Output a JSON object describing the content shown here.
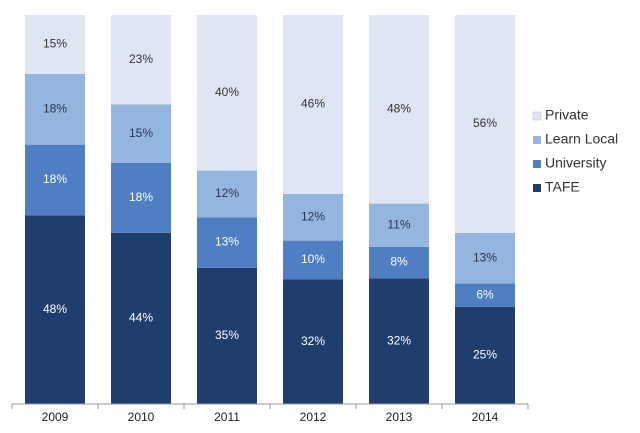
{
  "chart_data": {
    "type": "bar",
    "stacked": true,
    "normalized": true,
    "categories": [
      "2009",
      "2010",
      "2011",
      "2012",
      "2013",
      "2014"
    ],
    "series": [
      {
        "name": "TAFE",
        "color": "#1f3d6d",
        "label_color": "#ffffff",
        "values": [
          48,
          44,
          35,
          32,
          32,
          25
        ],
        "labels": [
          "48%",
          "44%",
          "35%",
          "32%",
          "32%",
          "25%"
        ]
      },
      {
        "name": "University",
        "color": "#4f7ec2",
        "label_color": "#ffffff",
        "values": [
          18,
          18,
          13,
          10,
          8,
          6
        ],
        "labels": [
          "18%",
          "18%",
          "13%",
          "10%",
          "8%",
          "6%"
        ]
      },
      {
        "name": "Learn Local",
        "color": "#94b5de",
        "label_color": "#2a3550",
        "values": [
          18,
          15,
          12,
          12,
          11,
          13
        ],
        "labels": [
          "18%",
          "15%",
          "12%",
          "12%",
          "11%",
          "13%"
        ]
      },
      {
        "name": "Private",
        "color": "#dfe5f2",
        "label_color": "#333333",
        "values": [
          15,
          23,
          40,
          46,
          48,
          56
        ],
        "labels": [
          "15%",
          "23%",
          "40%",
          "46%",
          "48%",
          "56%"
        ]
      }
    ],
    "legend_order": [
      "Private",
      "Learn Local",
      "University",
      "TAFE"
    ],
    "legend_position": "right",
    "ylim": [
      0,
      100
    ],
    "title": "",
    "xlabel": "",
    "ylabel": "",
    "grid": false,
    "y_axis_visible": false
  }
}
